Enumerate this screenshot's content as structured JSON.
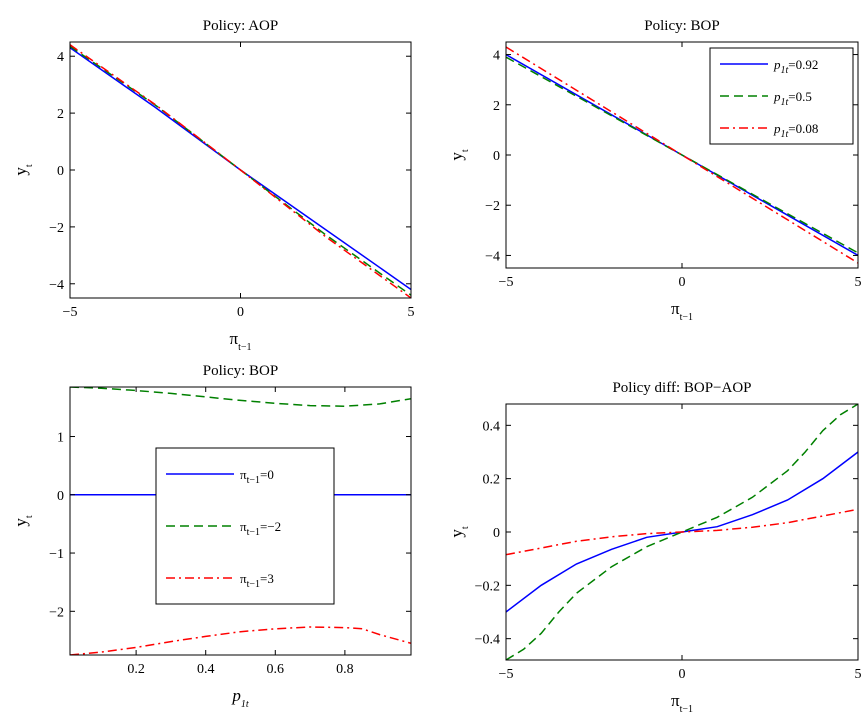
{
  "chart_data": [
    {
      "type": "line",
      "title": "Policy: AOP",
      "xlabel": "π",
      "xlabel_sub": "t−1",
      "ylabel": "y",
      "ylabel_sub": "t",
      "xlim": [
        -5,
        5
      ],
      "ylim": [
        -4.5,
        4.5
      ],
      "xticks": [
        -5,
        0,
        5
      ],
      "xtick_labels": [
        "−5",
        "0",
        "5"
      ],
      "yticks": [
        -4,
        -2,
        0,
        2,
        4
      ],
      "ytick_labels": [
        "−4",
        "−2",
        "0",
        "2",
        "4"
      ],
      "legend": null,
      "series": [
        {
          "color": "#0000ff",
          "style": "solid",
          "x": [
            -5,
            -2.5,
            0,
            2.5,
            5
          ],
          "y": [
            4.3,
            2.2,
            0.0,
            -2.1,
            -4.2
          ]
        },
        {
          "color": "#008000",
          "style": "dashed",
          "x": [
            -5,
            -2.5,
            0,
            2.5,
            5
          ],
          "y": [
            4.35,
            2.28,
            0.0,
            -2.28,
            -4.4
          ]
        },
        {
          "color": "#ff0000",
          "style": "dashdot",
          "x": [
            -5,
            -2.5,
            0,
            2.5,
            5
          ],
          "y": [
            4.4,
            2.3,
            0.0,
            -2.35,
            -4.5
          ]
        }
      ]
    },
    {
      "type": "line",
      "title": "Policy: BOP",
      "xlabel": "π",
      "xlabel_sub": "t−1",
      "ylabel": "y",
      "ylabel_sub": "t",
      "xlim": [
        -5,
        5
      ],
      "ylim": [
        -4.5,
        4.5
      ],
      "xticks": [
        -5,
        0,
        5
      ],
      "xtick_labels": [
        "−5",
        "0",
        "5"
      ],
      "yticks": [
        -4,
        -2,
        0,
        2,
        4
      ],
      "ytick_labels": [
        "−4",
        "−2",
        "0",
        "2",
        "4"
      ],
      "legend": "top-right",
      "series": [
        {
          "name": "p",
          "name_sub": "1t",
          "name_value": "=0.92",
          "color": "#0000ff",
          "style": "solid",
          "x": [
            -5,
            -2.5,
            0,
            2.5,
            5
          ],
          "y": [
            4.0,
            2.0,
            0.0,
            -2.0,
            -4.0
          ]
        },
        {
          "name": "p",
          "name_sub": "1t",
          "name_value": "=0.5",
          "color": "#008000",
          "style": "dashed",
          "x": [
            -5,
            -2.5,
            0,
            2.5,
            5
          ],
          "y": [
            3.9,
            1.95,
            0.0,
            -1.95,
            -3.9
          ]
        },
        {
          "name": "p",
          "name_sub": "1t",
          "name_value": "=0.08",
          "color": "#ff0000",
          "style": "dashdot",
          "x": [
            -5,
            -2.5,
            0,
            2.5,
            5
          ],
          "y": [
            4.3,
            2.15,
            0.0,
            -2.15,
            -4.3
          ]
        }
      ]
    },
    {
      "type": "line",
      "title": "Policy: BOP",
      "xlabel": "p",
      "xlabel_sub": "1t",
      "ylabel": "y",
      "ylabel_sub": "t",
      "xlim": [
        0.01,
        0.99
      ],
      "ylim": [
        -2.75,
        1.85
      ],
      "xticks": [
        0.2,
        0.4,
        0.6,
        0.8
      ],
      "xtick_labels": [
        "0.2",
        "0.4",
        "0.6",
        "0.8"
      ],
      "yticks": [
        -2,
        -1,
        0,
        1
      ],
      "ytick_labels": [
        "−2",
        "−1",
        "0",
        "1"
      ],
      "legend": "center",
      "series": [
        {
          "name": "π",
          "name_sub": "t−1",
          "name_value": "=0",
          "color": "#0000ff",
          "style": "solid",
          "x": [
            0.01,
            0.99
          ],
          "y": [
            0.0,
            0.0
          ]
        },
        {
          "name": "π",
          "name_sub": "t−1",
          "name_value": "=−2",
          "color": "#008000",
          "style": "dashed",
          "x": [
            0.01,
            0.1,
            0.2,
            0.3,
            0.4,
            0.5,
            0.6,
            0.7,
            0.8,
            0.9,
            0.99
          ],
          "y": [
            1.85,
            1.83,
            1.79,
            1.74,
            1.68,
            1.62,
            1.57,
            1.53,
            1.52,
            1.56,
            1.65
          ]
        },
        {
          "name": "π",
          "name_sub": "t−1",
          "name_value": "=3",
          "color": "#ff0000",
          "style": "dashdot",
          "x": [
            0.01,
            0.1,
            0.2,
            0.3,
            0.4,
            0.5,
            0.6,
            0.7,
            0.8,
            0.85,
            0.9,
            0.99
          ],
          "y": [
            -2.75,
            -2.7,
            -2.62,
            -2.52,
            -2.43,
            -2.35,
            -2.3,
            -2.27,
            -2.28,
            -2.3,
            -2.4,
            -2.55
          ]
        }
      ]
    },
    {
      "type": "line",
      "title": "Policy diff: BOP−AOP",
      "xlabel": "π",
      "xlabel_sub": "t−1",
      "ylabel": "y",
      "ylabel_sub": "t",
      "xlim": [
        -5,
        5
      ],
      "ylim": [
        -0.48,
        0.48
      ],
      "xticks": [
        -5,
        0,
        5
      ],
      "xtick_labels": [
        "−5",
        "0",
        "5"
      ],
      "yticks": [
        -0.4,
        -0.2,
        0,
        0.2,
        0.4
      ],
      "ytick_labels": [
        "−0.4",
        "−0.2",
        "0",
        "0.2",
        "0.4"
      ],
      "legend": null,
      "series": [
        {
          "color": "#0000ff",
          "style": "solid",
          "x": [
            -5,
            -4,
            -3,
            -2,
            -1,
            0,
            1,
            2,
            3,
            4,
            5
          ],
          "y": [
            -0.3,
            -0.2,
            -0.12,
            -0.065,
            -0.02,
            0.0,
            0.02,
            0.065,
            0.12,
            0.2,
            0.3
          ]
        },
        {
          "color": "#008000",
          "style": "dashed",
          "x": [
            -5,
            -4.5,
            -4,
            -3.5,
            -3,
            -2,
            -1,
            0,
            1,
            2,
            3,
            3.5,
            4,
            4.5,
            5
          ],
          "y": [
            -0.48,
            -0.44,
            -0.38,
            -0.3,
            -0.23,
            -0.13,
            -0.055,
            0.0,
            0.055,
            0.13,
            0.23,
            0.3,
            0.38,
            0.44,
            0.48
          ]
        },
        {
          "color": "#ff0000",
          "style": "dashdot",
          "x": [
            -5,
            -4,
            -3,
            -2,
            -1,
            0,
            1,
            2,
            3,
            4,
            5
          ],
          "y": [
            -0.085,
            -0.06,
            -0.035,
            -0.018,
            -0.006,
            0.0,
            0.006,
            0.018,
            0.035,
            0.06,
            0.085
          ]
        }
      ]
    }
  ]
}
